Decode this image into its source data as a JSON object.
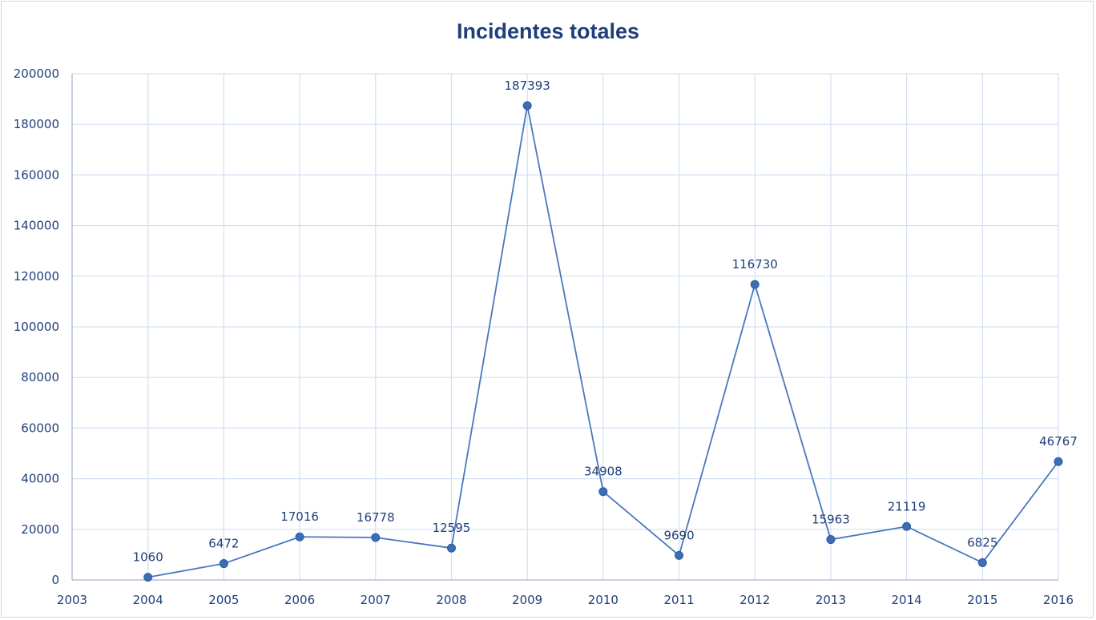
{
  "chart_data": {
    "type": "line",
    "title": "Incidentes totales",
    "xlabel": "",
    "ylabel": "",
    "x_ticks": [
      "2003",
      "2004",
      "2005",
      "2006",
      "2007",
      "2008",
      "2009",
      "2010",
      "2011",
      "2012",
      "2013",
      "2014",
      "2015",
      "2016"
    ],
    "x": [
      2004,
      2005,
      2006,
      2007,
      2008,
      2009,
      2010,
      2011,
      2012,
      2013,
      2014,
      2015,
      2016
    ],
    "series": [
      {
        "values": [
          1060,
          6472,
          17016,
          16778,
          12595,
          187393,
          34908,
          9690,
          116730,
          15963,
          21119,
          6825,
          46767
        ]
      }
    ],
    "xlim": [
      2003,
      2016
    ],
    "ylim": [
      0,
      200000
    ],
    "y_ticks": [
      0,
      20000,
      40000,
      60000,
      80000,
      100000,
      120000,
      140000,
      160000,
      180000,
      200000
    ],
    "grid": true,
    "data_labels": true,
    "colors": {
      "line": "#4a78bd",
      "marker": "#3d6db5",
      "grid": "#d3e0f2",
      "text": "#1f3f7a"
    }
  }
}
